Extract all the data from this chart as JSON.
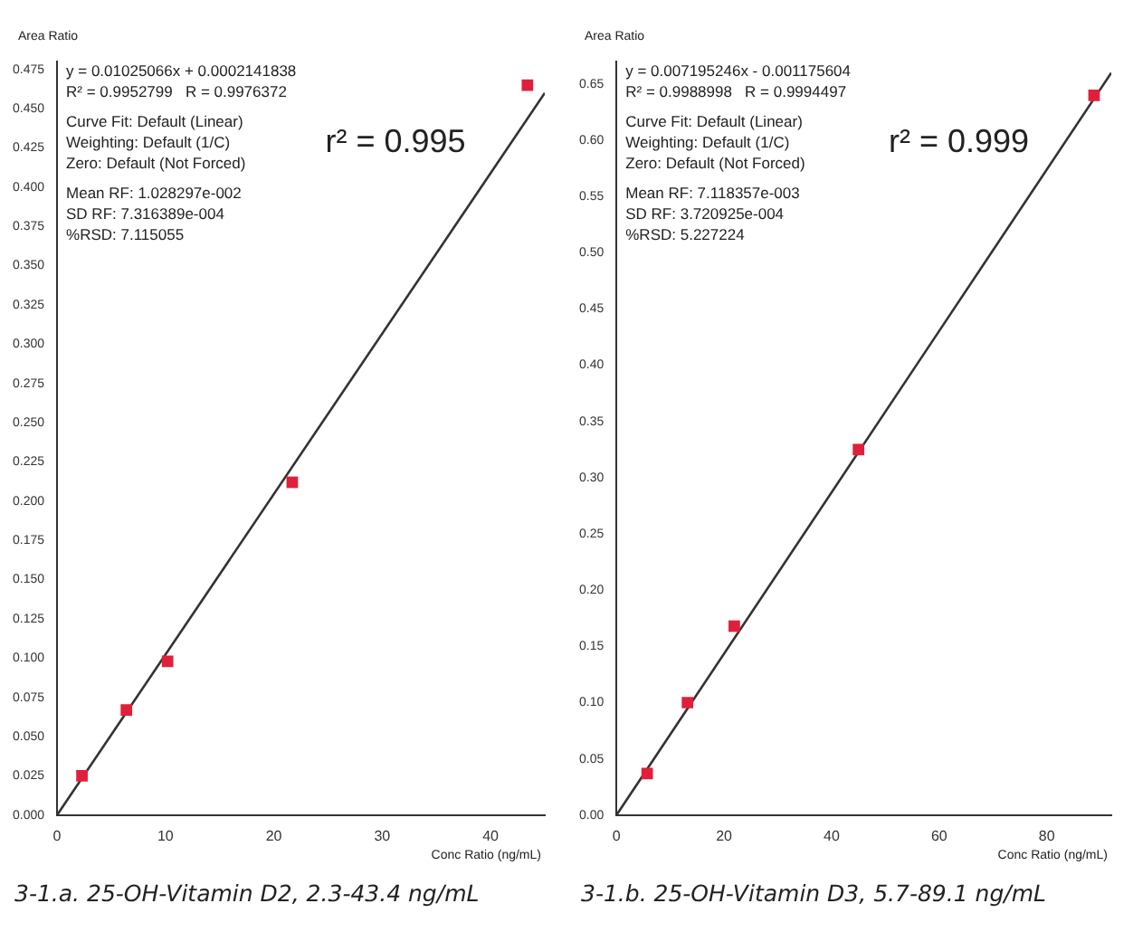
{
  "chart_data": [
    {
      "type": "scatter",
      "title": "3-1.a. 25-OH-Vitamin D2, 2.3-43.4 ng/mL",
      "xlabel": "Conc Ratio (ng/mL)",
      "ylabel": "Area Ratio",
      "xlim": [
        0,
        45
      ],
      "xticks": [
        0,
        10,
        20,
        30,
        40
      ],
      "ylim": [
        0,
        0.48
      ],
      "yticks": [
        {
          "value": 0,
          "label": "0.000"
        },
        {
          "value": 0.025,
          "label": "0.025"
        },
        {
          "value": 0.05,
          "label": "0.050"
        },
        {
          "value": 0.075,
          "label": "0.075"
        },
        {
          "value": 0.1,
          "label": "0.100"
        },
        {
          "value": 0.125,
          "label": "0.125"
        },
        {
          "value": 0.15,
          "label": "0.150"
        },
        {
          "value": 0.175,
          "label": "0.175"
        },
        {
          "value": 0.2,
          "label": "0.200"
        },
        {
          "value": 0.225,
          "label": "0.225"
        },
        {
          "value": 0.25,
          "label": "0.250"
        },
        {
          "value": 0.275,
          "label": "0.275"
        },
        {
          "value": 0.3,
          "label": "0.300"
        },
        {
          "value": 0.325,
          "label": "0.325"
        },
        {
          "value": 0.35,
          "label": "0.350"
        },
        {
          "value": 0.375,
          "label": "0.375"
        },
        {
          "value": 0.4,
          "label": "0.400"
        },
        {
          "value": 0.425,
          "label": "0.425"
        },
        {
          "value": 0.45,
          "label": "0.450"
        },
        {
          "value": 0.475,
          "label": "0.475"
        }
      ],
      "grid": false,
      "legend": false,
      "series": [
        {
          "marker": "square",
          "color": "#e0203a",
          "x": [
            2.3,
            6.4,
            10.2,
            21.7,
            43.4
          ],
          "values": [
            0.025,
            0.067,
            0.098,
            0.212,
            0.465
          ]
        },
        {
          "type": "line",
          "marker": "none",
          "color": "#333333",
          "x": [
            0,
            45
          ],
          "values": [
            0,
            0.46
          ]
        }
      ],
      "annotations": [
        "r² = 0.995",
        "y = 0.01025066x + 0.0002141838",
        "R² = 0.9952799   R = 0.9976372",
        "Curve Fit: Default (Linear)",
        "Weighting: Default (1/C)",
        "Zero: Default (Not Forced)",
        "Mean RF: 1.028297e-002",
        "SD RF: 7.316389e-004",
        "%RSD: 7.115055"
      ]
    },
    {
      "type": "scatter",
      "title": "3-1.b. 25-OH-Vitamin D3, 5.7-89.1 ng/mL",
      "xlabel": "Conc Ratio (ng/mL)",
      "ylabel": "Area Ratio",
      "xlim": [
        0,
        92
      ],
      "xticks": [
        0,
        20,
        40,
        60,
        80
      ],
      "ylim": [
        0,
        0.67
      ],
      "yticks": [
        {
          "value": 0,
          "label": "0.00"
        },
        {
          "value": 0.05,
          "label": "0.05"
        },
        {
          "value": 0.1,
          "label": "0.10"
        },
        {
          "value": 0.15,
          "label": "0.15"
        },
        {
          "value": 0.2,
          "label": "0.20"
        },
        {
          "value": 0.25,
          "label": "0.25"
        },
        {
          "value": 0.3,
          "label": "0.30"
        },
        {
          "value": 0.35,
          "label": "0.35"
        },
        {
          "value": 0.4,
          "label": "0.40"
        },
        {
          "value": 0.45,
          "label": "0.45"
        },
        {
          "value": 0.5,
          "label": "0.50"
        },
        {
          "value": 0.55,
          "label": "0.55"
        },
        {
          "value": 0.6,
          "label": "0.60"
        },
        {
          "value": 0.65,
          "label": "0.65"
        }
      ],
      "grid": false,
      "legend": false,
      "series": [
        {
          "marker": "square",
          "color": "#e0203a",
          "x": [
            5.7,
            13.2,
            21.9,
            45,
            88.8
          ],
          "values": [
            0.037,
            0.1,
            0.168,
            0.325,
            0.64
          ]
        },
        {
          "type": "line",
          "marker": "none",
          "color": "#333333",
          "x": [
            0,
            92
          ],
          "values": [
            0,
            0.66
          ]
        }
      ],
      "annotations": [
        "r² = 0.999",
        "y = 0.007195246x - 0.001175604",
        "R² = 0.9988998   R = 0.9994497",
        "Curve Fit: Default (Linear)",
        "Weighting: Default (1/C)",
        "Zero: Default (Not Forced)",
        "Mean RF: 7.118357e-003",
        "SD RF: 3.720925e-004",
        "%RSD: 5.227224"
      ]
    }
  ]
}
